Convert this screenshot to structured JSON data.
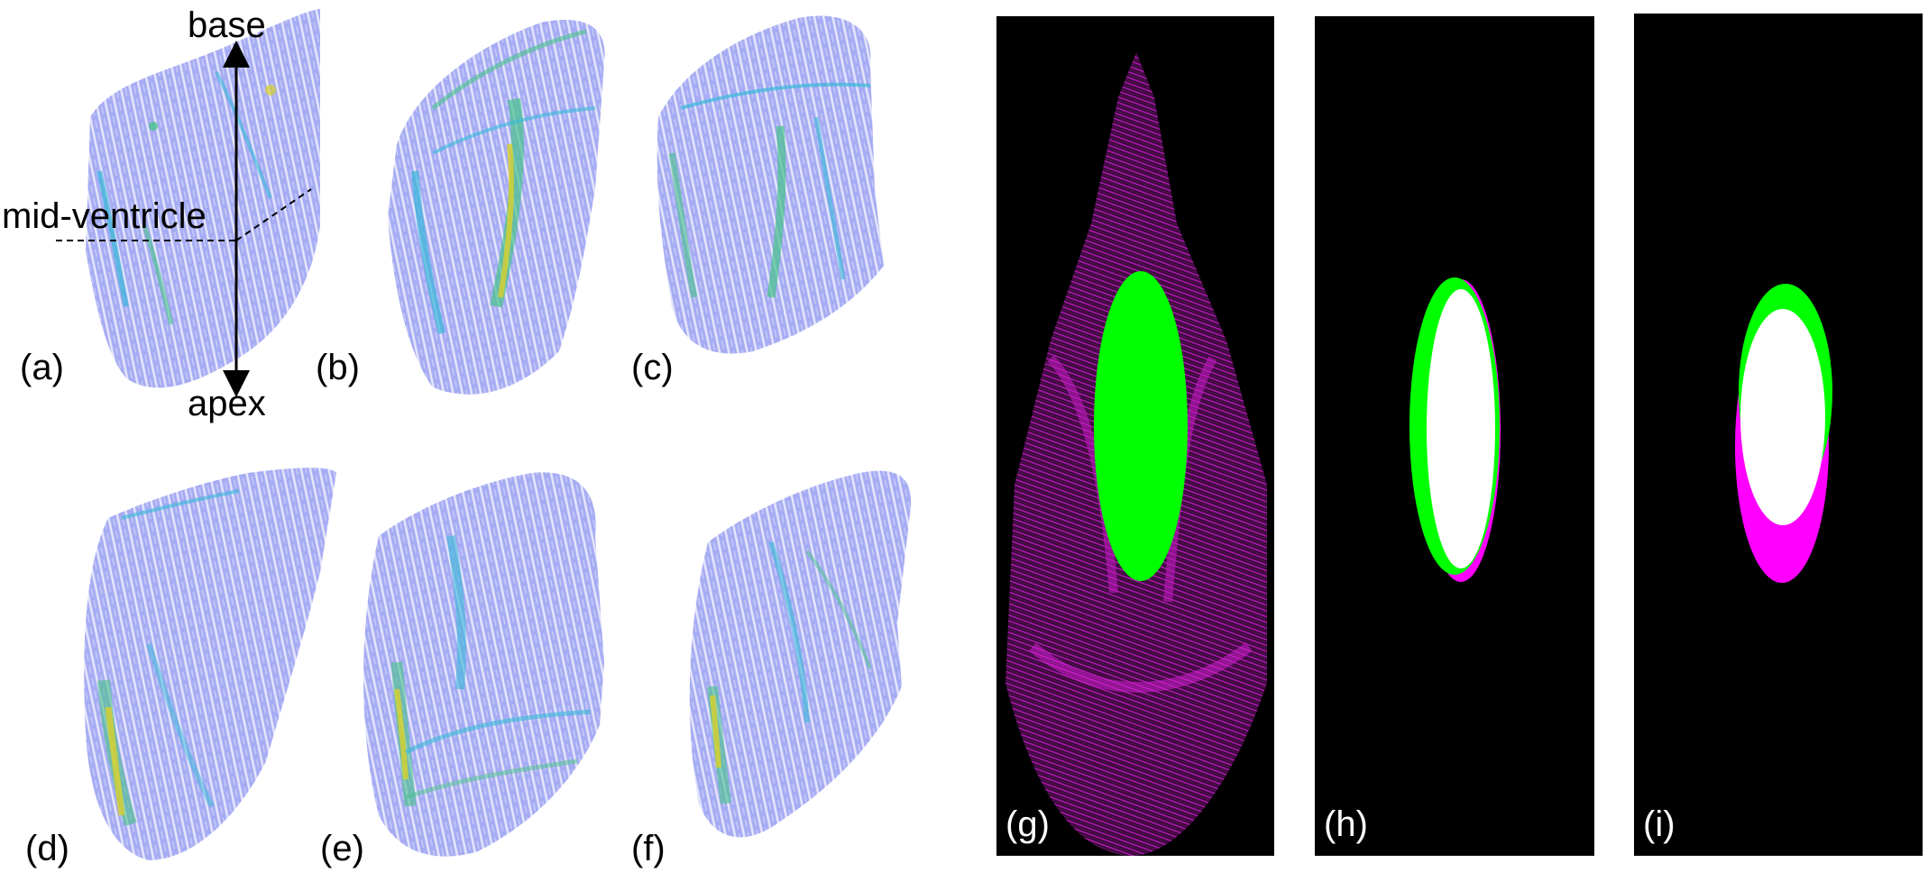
{
  "panels": {
    "a": "(a)",
    "b": "(b)",
    "c": "(c)",
    "d": "(d)",
    "e": "(e)",
    "f": "(f)",
    "g": "(g)",
    "h": "(h)",
    "i": "(i)"
  },
  "annotations": {
    "base": "base",
    "apex": "apex",
    "mid_ventricle": "mid-ventricle"
  },
  "colors": {
    "background": "#ffffff",
    "volume_base": "#9fa6f2",
    "volume_streak_light": "#e4e4fb",
    "volume_cyan": "#39b7d8",
    "volume_green": "#47c28a",
    "volume_yellow": "#d9d12a",
    "mask_green": "#00ff00",
    "mask_magenta": "#ff00ff",
    "mask_white": "#ffffff",
    "dark_panel": "#000000"
  }
}
